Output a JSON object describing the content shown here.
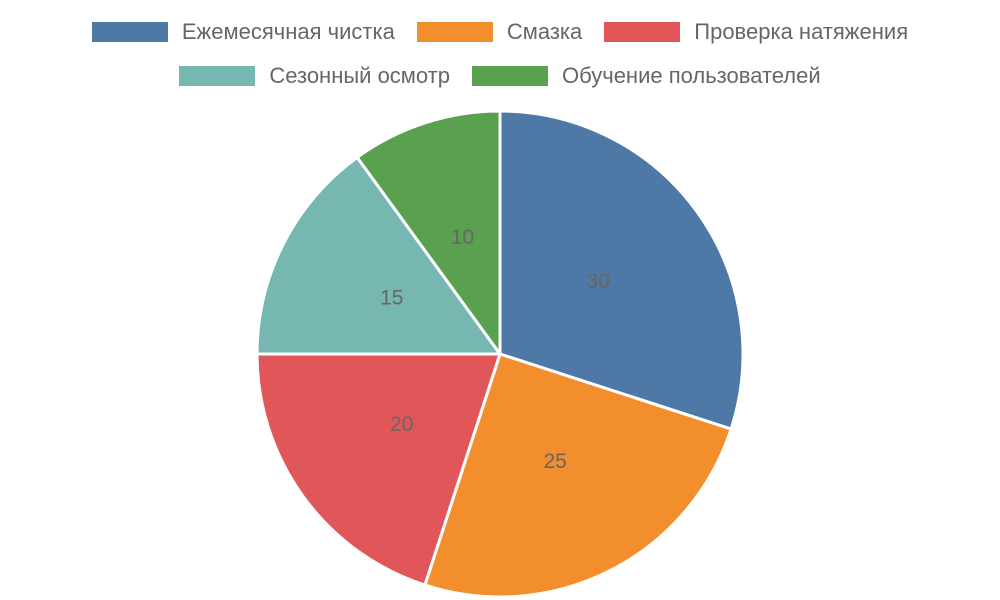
{
  "chart_data": {
    "type": "pie",
    "categories": [
      "Ежемесячная чистка",
      "Смазка",
      "Проверка натяжения",
      "Сезонный осмотр",
      "Обучение пользователей"
    ],
    "values": [
      30,
      25,
      20,
      15,
      10
    ],
    "colors": [
      "#4e79a7",
      "#f28e2b",
      "#e15759",
      "#76b7b2",
      "#59a14f"
    ],
    "legend_placement": "top",
    "data_labels_shown": true,
    "start_angle": "top",
    "direction": "clockwise"
  }
}
